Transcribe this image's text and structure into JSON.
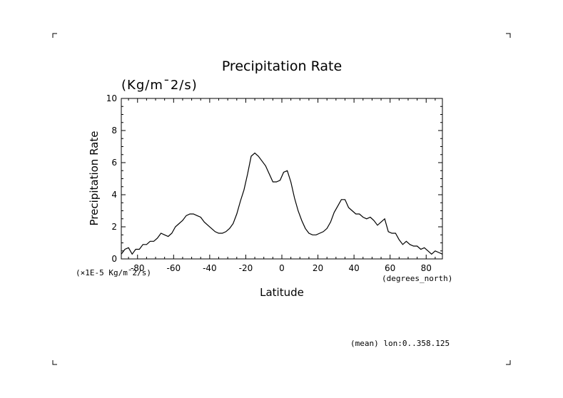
{
  "chart_data": {
    "type": "line",
    "title": "Precipitation Rate",
    "units_label": "(Kg/m¯2/s)",
    "xlabel": "Latitude",
    "ylabel": "Precipitation Rate",
    "scale_note": "(×1E-5 Kg/m¯2/s)",
    "x_units": "(degrees_north)",
    "footnote": "(mean) lon:0..358.125",
    "xlim": [
      -89,
      89
    ],
    "ylim": [
      0,
      10
    ],
    "x_ticks": [
      -80,
      -60,
      -40,
      -20,
      0,
      20,
      40,
      60,
      80
    ],
    "x_tick_labels": [
      "-80",
      "-60",
      "-40",
      "-20",
      "0",
      "20",
      "40",
      "60",
      "80"
    ],
    "y_ticks": [
      0,
      2,
      4,
      6,
      8,
      10
    ],
    "y_tick_labels": [
      "0",
      "2",
      "4",
      "6",
      "8",
      "10"
    ],
    "series": [
      {
        "name": "Precipitation Rate",
        "color": "#000000",
        "x": [
          -89,
          -87,
          -85,
          -83,
          -81,
          -79,
          -77,
          -75,
          -73,
          -71,
          -69,
          -67,
          -65,
          -63,
          -61,
          -59,
          -57,
          -55,
          -53,
          -51,
          -49,
          -47,
          -45,
          -43,
          -41,
          -39,
          -37,
          -35,
          -33,
          -31,
          -29,
          -27,
          -25,
          -23,
          -21,
          -19,
          -17,
          -15,
          -13,
          -11,
          -9,
          -7,
          -5,
          -3,
          -1,
          1,
          3,
          5,
          7,
          9,
          11,
          13,
          15,
          17,
          19,
          21,
          23,
          25,
          27,
          29,
          31,
          33,
          35,
          37,
          39,
          41,
          43,
          45,
          47,
          49,
          51,
          53,
          55,
          57,
          59,
          61,
          63,
          65,
          67,
          69,
          71,
          73,
          75,
          77,
          79,
          81,
          83,
          85,
          87,
          89
        ],
        "y": [
          0.3,
          0.6,
          0.7,
          0.3,
          0.6,
          0.6,
          0.9,
          0.9,
          1.1,
          1.1,
          1.3,
          1.6,
          1.5,
          1.4,
          1.6,
          2.0,
          2.2,
          2.4,
          2.7,
          2.8,
          2.8,
          2.7,
          2.6,
          2.3,
          2.1,
          1.9,
          1.7,
          1.6,
          1.6,
          1.7,
          1.9,
          2.2,
          2.8,
          3.6,
          4.3,
          5.3,
          6.4,
          6.6,
          6.4,
          6.1,
          5.8,
          5.3,
          4.8,
          4.8,
          4.9,
          5.4,
          5.5,
          4.8,
          3.8,
          3.0,
          2.4,
          1.9,
          1.6,
          1.5,
          1.5,
          1.6,
          1.7,
          1.9,
          2.3,
          2.9,
          3.3,
          3.7,
          3.7,
          3.2,
          3.0,
          2.8,
          2.8,
          2.6,
          2.5,
          2.6,
          2.4,
          2.1,
          2.3,
          2.5,
          1.7,
          1.6,
          1.6,
          1.2,
          0.9,
          1.1,
          0.9,
          0.8,
          0.8,
          0.6,
          0.7,
          0.5,
          0.3,
          0.5,
          0.4,
          0.3
        ]
      }
    ]
  }
}
